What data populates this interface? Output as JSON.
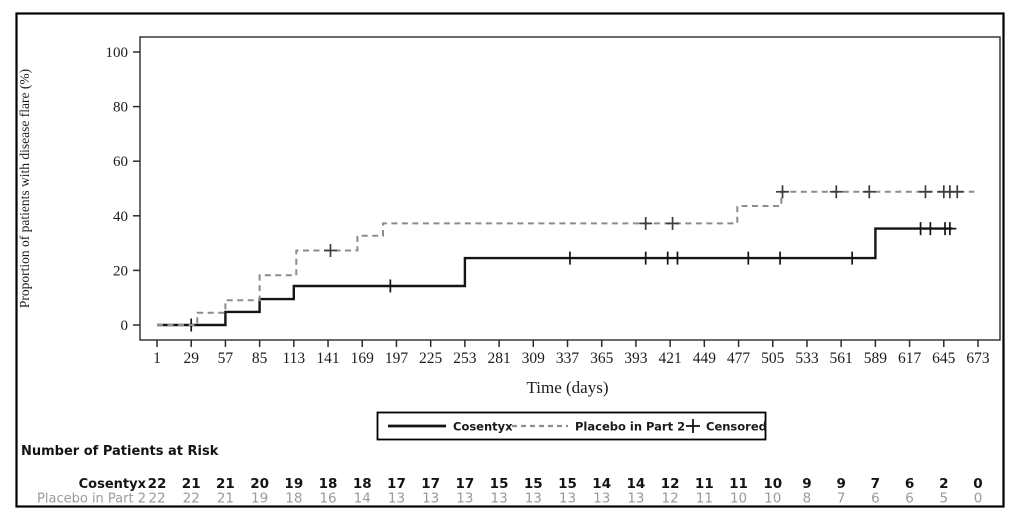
{
  "chart_data": {
    "type": "line",
    "subtype": "kaplan_meier_step",
    "title": "",
    "xlabel": "Time (days)",
    "ylabel": "Proportion of patients with disease flare (%)",
    "xlim": [
      1,
      673
    ],
    "ylim": [
      0,
      100
    ],
    "grid": false,
    "legend_position": "bottom-center-boxed",
    "x_ticks": [
      1,
      29,
      57,
      85,
      113,
      141,
      169,
      197,
      225,
      253,
      281,
      309,
      337,
      365,
      393,
      421,
      449,
      477,
      505,
      533,
      561,
      589,
      617,
      645,
      673
    ],
    "y_ticks": [
      0,
      20,
      40,
      60,
      80,
      100
    ],
    "series": [
      {
        "name": "Cosentyx",
        "style": "solid",
        "color": "#141414",
        "censor_color": "#141414",
        "points": [
          [
            1,
            0
          ],
          [
            57,
            0
          ],
          [
            57,
            4.8
          ],
          [
            85,
            4.8
          ],
          [
            85,
            9.5
          ],
          [
            113,
            9.5
          ],
          [
            113,
            14.3
          ],
          [
            253,
            14.3
          ],
          [
            253,
            24.5
          ],
          [
            589,
            24.5
          ],
          [
            589,
            35.3
          ],
          [
            652,
            35.3
          ]
        ],
        "censored": [
          [
            29,
            0
          ],
          [
            192,
            14.3
          ],
          [
            339,
            24.5
          ],
          [
            401,
            24.5
          ],
          [
            419,
            24.5
          ],
          [
            427,
            24.5
          ],
          [
            485,
            24.5
          ],
          [
            511,
            24.5
          ],
          [
            570,
            24.5
          ],
          [
            626,
            35.3
          ],
          [
            634,
            35.3
          ],
          [
            646,
            35.3
          ],
          [
            650,
            35.3
          ]
        ]
      },
      {
        "name": "Placebo in Part 2",
        "style": "dashed",
        "color": "#8c8c8c",
        "censor_color": "#3d3d3d",
        "points": [
          [
            1,
            0
          ],
          [
            34,
            0
          ],
          [
            34,
            4.5
          ],
          [
            57,
            4.5
          ],
          [
            57,
            9.1
          ],
          [
            85,
            9.1
          ],
          [
            85,
            18.2
          ],
          [
            115,
            18.2
          ],
          [
            115,
            27.3
          ],
          [
            165,
            27.3
          ],
          [
            165,
            32.7
          ],
          [
            186,
            32.7
          ],
          [
            186,
            37.2
          ],
          [
            476,
            37.2
          ],
          [
            476,
            43.6
          ],
          [
            512,
            43.6
          ],
          [
            512,
            48.8
          ],
          [
            670,
            48.8
          ]
        ],
        "censored": [
          [
            143,
            27.3
          ],
          [
            401,
            37.2
          ],
          [
            423,
            37.2
          ],
          [
            513,
            48.8
          ],
          [
            557,
            48.8
          ],
          [
            584,
            48.8
          ],
          [
            630,
            48.8
          ],
          [
            645,
            48.8
          ],
          [
            650,
            48.8
          ],
          [
            656,
            48.8
          ]
        ]
      }
    ],
    "censored_label": "Censored"
  },
  "legend": {
    "items": [
      {
        "label": "Cosentyx",
        "marker": "solid-line"
      },
      {
        "label": "Placebo in Part 2",
        "marker": "dashed-line"
      },
      {
        "label": "Censored",
        "marker": "plus"
      }
    ]
  },
  "risk_table": {
    "title": "Number of Patients at Risk",
    "time_points": [
      1,
      29,
      57,
      85,
      113,
      141,
      169,
      197,
      225,
      253,
      281,
      309,
      337,
      365,
      393,
      421,
      449,
      477,
      505,
      533,
      561,
      589,
      617,
      645,
      673
    ],
    "rows": [
      {
        "label": "Cosentyx",
        "color": "#141414",
        "bold": true,
        "values": [
          22,
          21,
          21,
          20,
          19,
          18,
          18,
          17,
          17,
          17,
          15,
          15,
          15,
          14,
          14,
          12,
          11,
          11,
          10,
          9,
          9,
          7,
          6,
          2,
          0
        ]
      },
      {
        "label": "Placebo in Part 2",
        "color": "#9a9a9a",
        "bold": false,
        "values": [
          22,
          22,
          21,
          19,
          18,
          16,
          14,
          13,
          13,
          13,
          13,
          13,
          13,
          13,
          13,
          12,
          11,
          10,
          10,
          8,
          7,
          6,
          6,
          5,
          0
        ]
      }
    ]
  },
  "colors": {
    "cosentyx": "#141414",
    "placebo": "#8c8c8c",
    "table_gray": "#9a9a9a",
    "axis": "#2a2a2a",
    "border": "#000000"
  }
}
